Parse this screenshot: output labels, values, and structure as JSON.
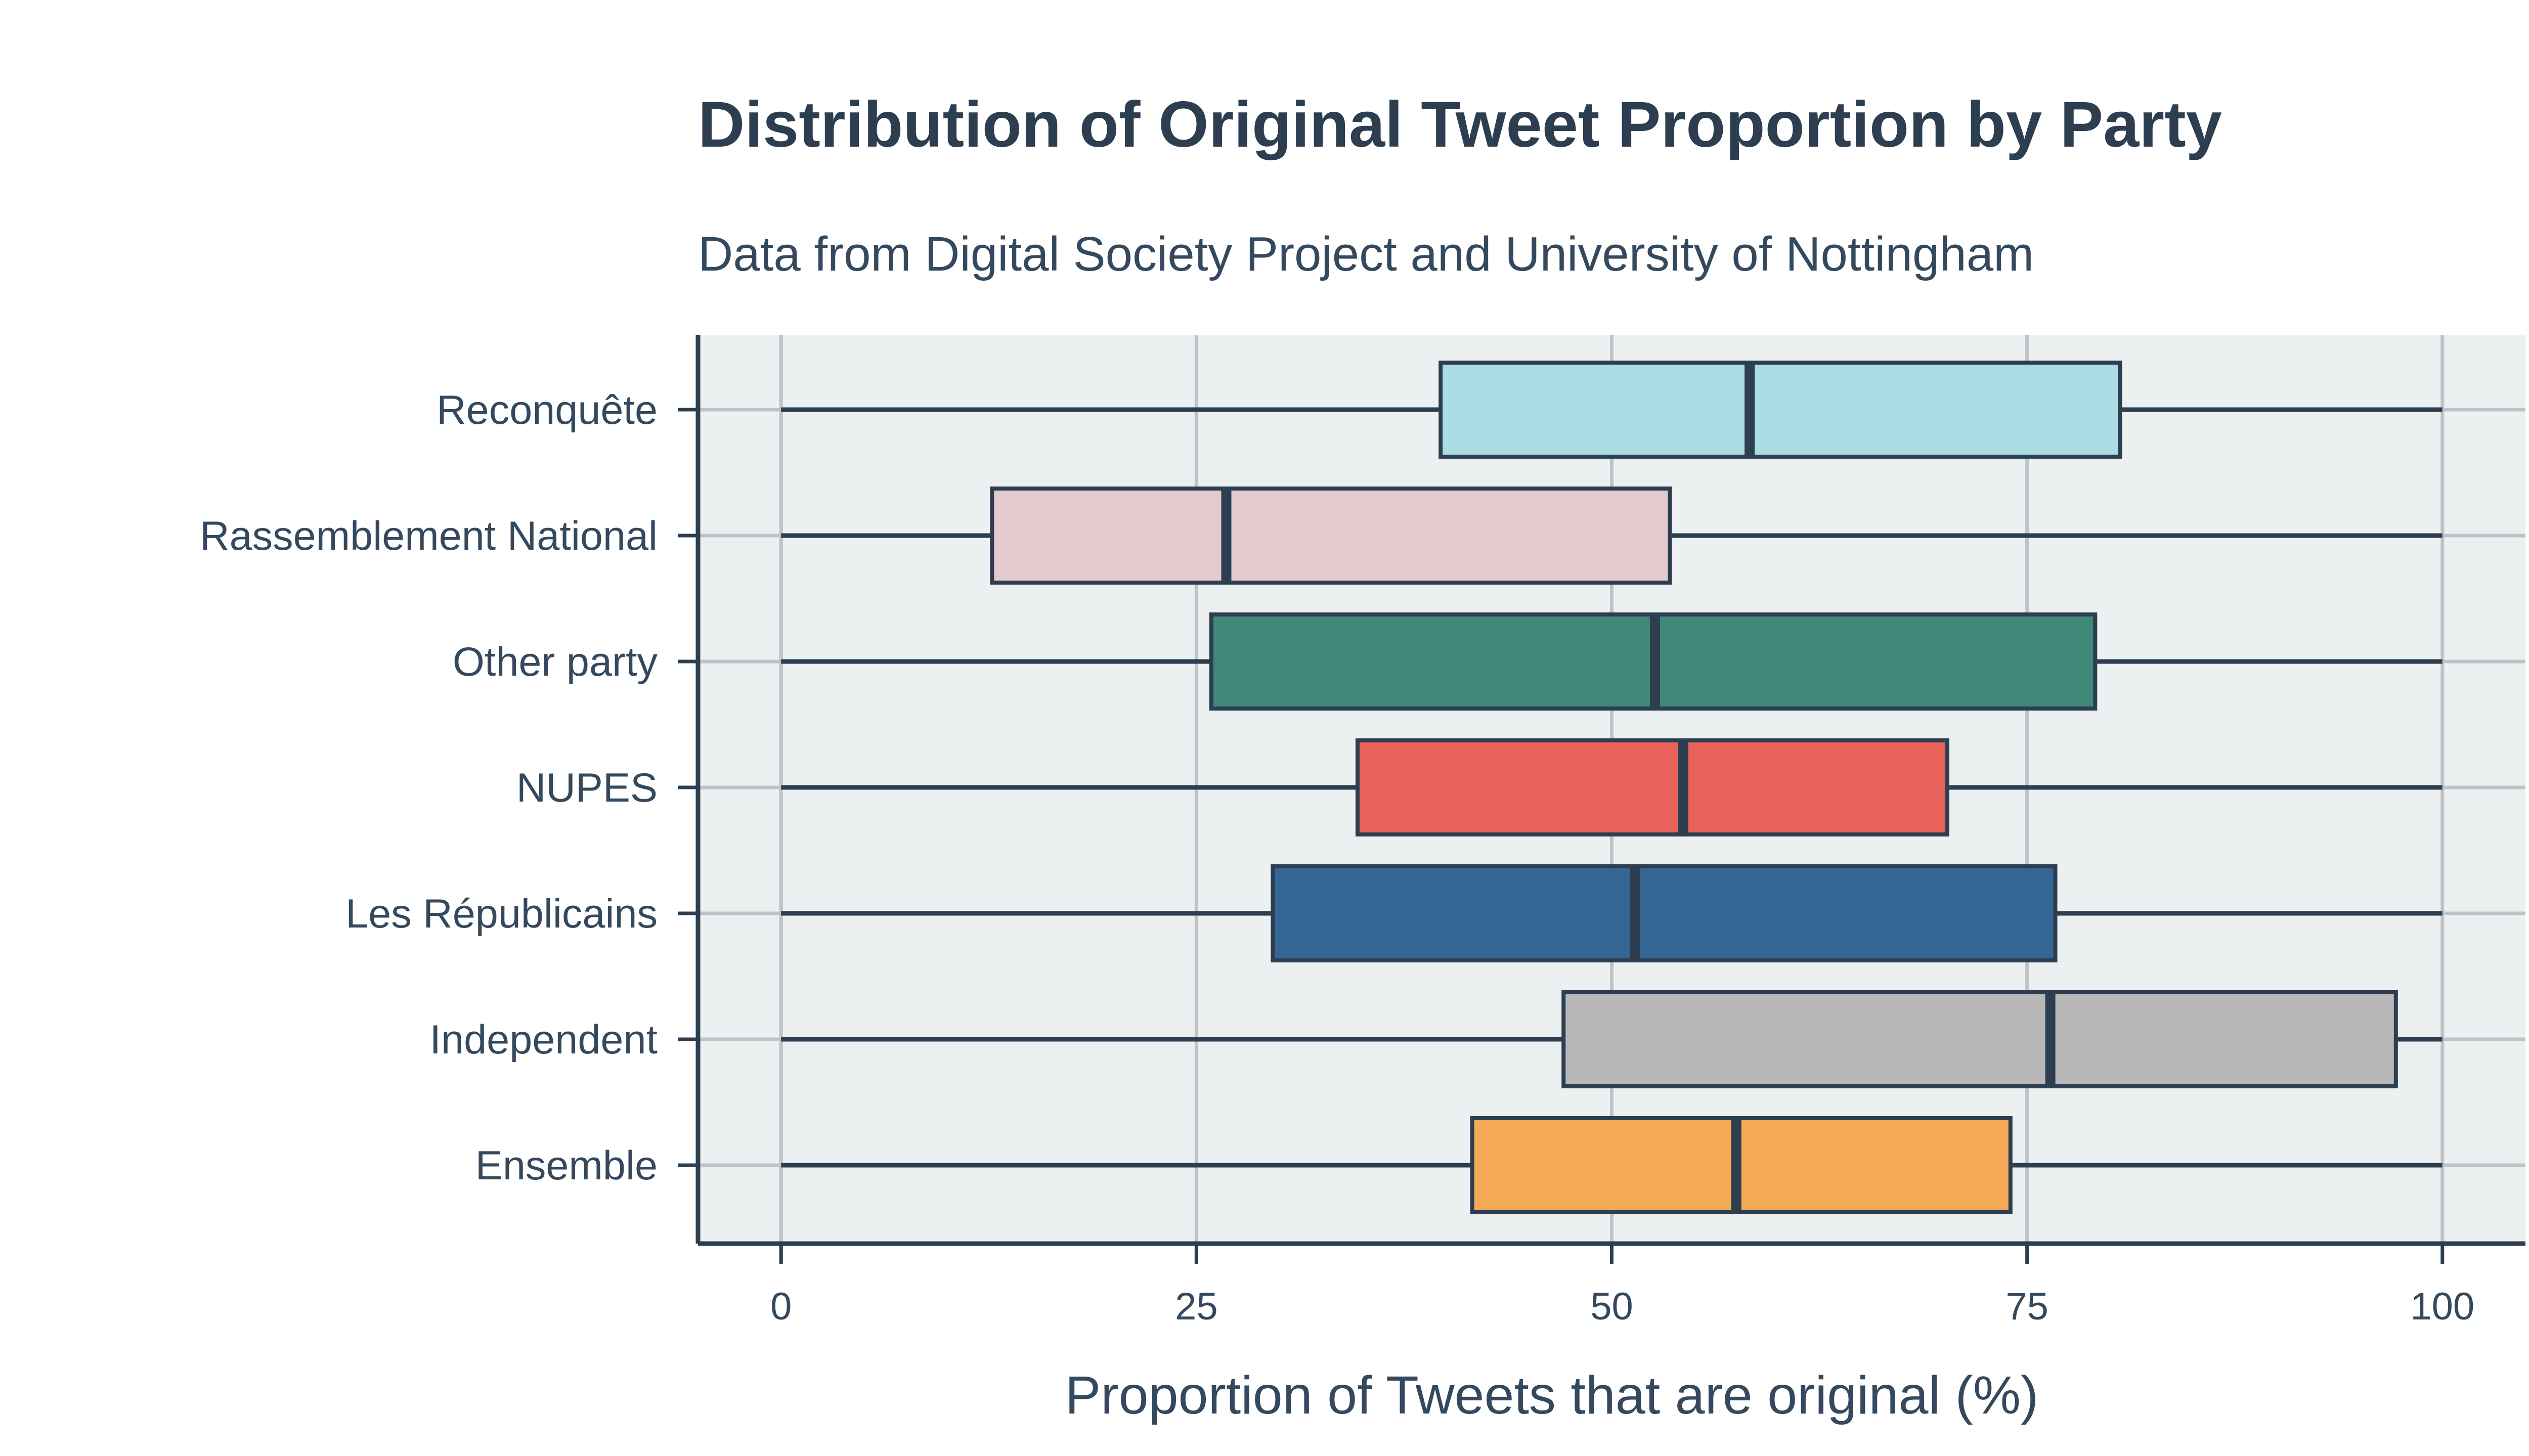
{
  "chart_data": {
    "type": "box",
    "orientation": "horizontal",
    "title": "Distribution of Original Tweet Proportion by Party",
    "subtitle": "Data from Digital Society Project and University of Nottingham",
    "xlabel": "Proportion of Tweets that are original (%)",
    "ylabel": "",
    "xlim": [
      -5,
      105
    ],
    "xticks": [
      0,
      25,
      50,
      75,
      100
    ],
    "grid": true,
    "legend": "none",
    "colors": {
      "background": "#ffffff",
      "plot_background": "#ecf0f1",
      "grid": "#bdc3c7",
      "axis": "#2c3e50",
      "text": "#34495e"
    },
    "categories": [
      "Reconquête",
      "Rassemblement National",
      "Other party",
      "NUPES",
      "Les Républicains",
      "Independent",
      "Ensemble"
    ],
    "series": [
      {
        "category": "Reconquête",
        "min": 0,
        "q1": 39.7,
        "median": 58.3,
        "q3": 80.6,
        "max": 100,
        "color": "#aadde3"
      },
      {
        "category": "Rassemblement National",
        "min": 0,
        "q1": 12.7,
        "median": 26.8,
        "q3": 53.5,
        "max": 100,
        "color": "#e4c9ce"
      },
      {
        "category": "Other party",
        "min": 0,
        "q1": 25.9,
        "median": 52.6,
        "q3": 79.1,
        "max": 100,
        "color": "#408878"
      },
      {
        "category": "NUPES",
        "min": 0,
        "q1": 34.7,
        "median": 54.3,
        "q3": 70.2,
        "max": 100,
        "color": "#e8625a"
      },
      {
        "category": "Les Républicains",
        "min": 0,
        "q1": 29.6,
        "median": 51.4,
        "q3": 76.7,
        "max": 100,
        "color": "#366694"
      },
      {
        "category": "Independent",
        "min": 0,
        "q1": 47.1,
        "median": 76.4,
        "q3": 97.2,
        "max": 100,
        "color": "#b8b8b8"
      },
      {
        "category": "Ensemble",
        "min": 0,
        "q1": 41.6,
        "median": 57.5,
        "q3": 74.0,
        "max": 100,
        "color": "#f5aa57"
      }
    ]
  }
}
